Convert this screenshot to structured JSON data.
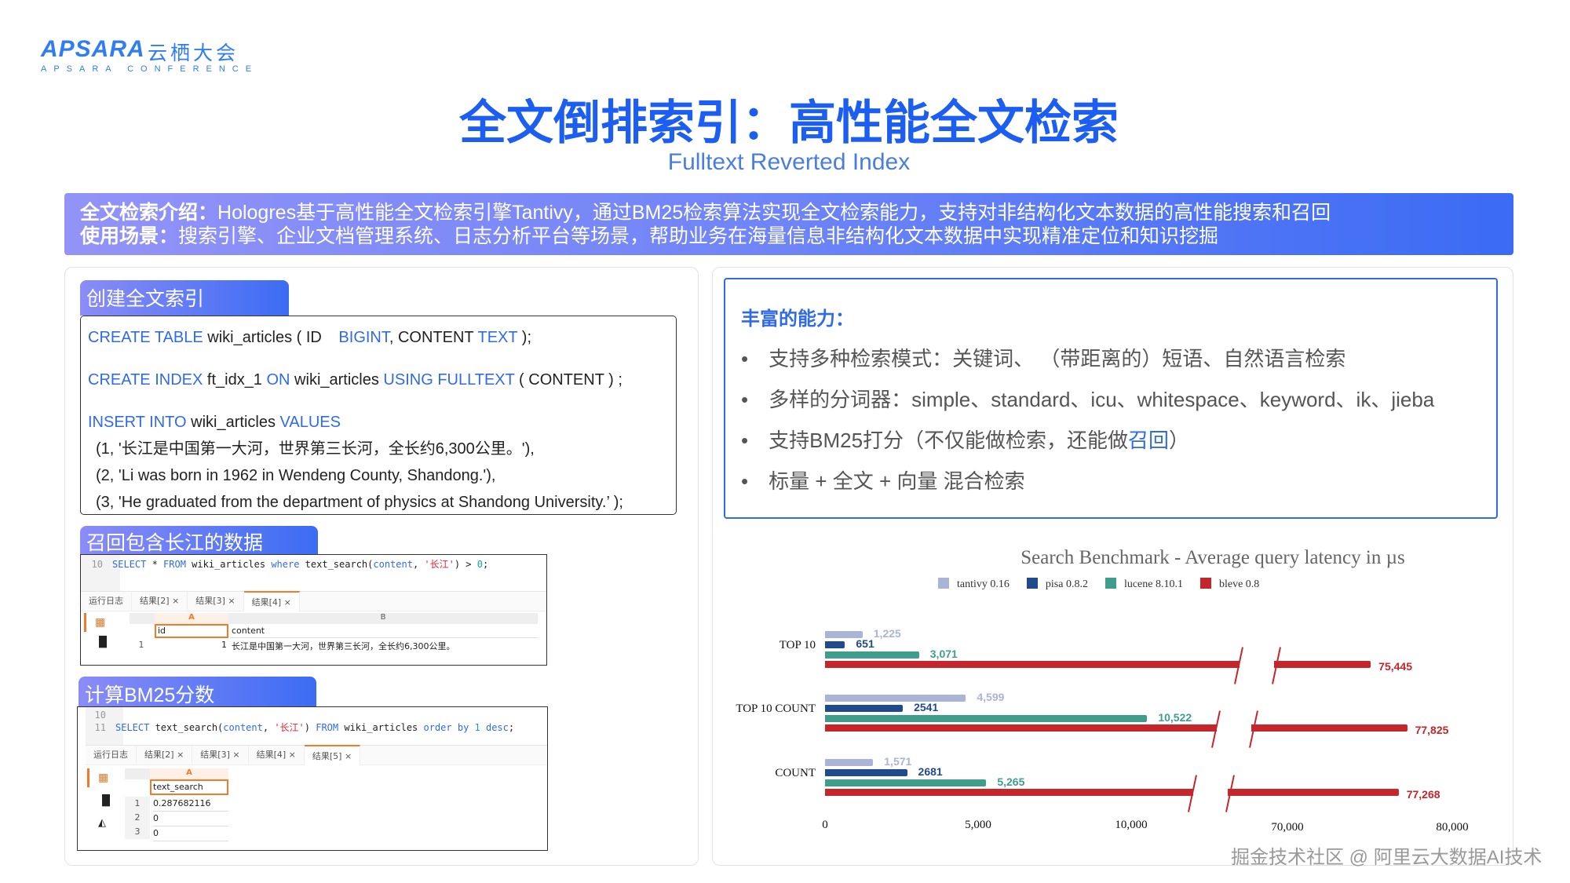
{
  "logo": {
    "main": "APSARA",
    "cn": "云栖大会",
    "sub": "APSARA CONFERENCE"
  },
  "title": "全文倒排索引：高性能全文检索",
  "subtitle": "Fulltext Reverted Index",
  "banner": {
    "line1_label": "全文检索介绍：",
    "line1": "Hologres基于高性能全文检索引擎Tantivy，通过BM25检索算法实现全文检索能力，支持对非结构化文本数据的高性能搜索和召回",
    "line2_label": "使用场景：",
    "line2": "搜索引擎、企业文档管理系统、日志分析平台等场景，帮助业务在海量信息非结构化文本数据中实现精准定位和知识挖掘"
  },
  "create": {
    "tab": "创建全文索引",
    "l1": {
      "k1": "CREATE TABLE",
      "t1": " wiki_articles ( ID ",
      "k2": "BIGINT",
      "t2": ", CONTENT ",
      "k3": "TEXT",
      "t3": " );"
    },
    "l2": {
      "k1": "CREATE INDEX",
      "t1": " ft_idx_1 ",
      "k2": "ON",
      "t2": " wiki_articles ",
      "k3": "USING FULLTEXT",
      "t3": " ( CONTENT ) ;"
    },
    "l3": {
      "k1": "INSERT INTO",
      "t1": " wiki_articles ",
      "k2": "VALUES"
    },
    "rows": [
      "(1, '长江是中国第一大河，世界第三长河，全长约6,300公里。'),",
      "(2, 'Li was born in 1962 in Wendeng County, Shandong.'),",
      "(3, 'He graduated from the department of physics at Shandong University.’  );"
    ]
  },
  "recall": {
    "tab": "召回包含长江的数据",
    "line_no": "10",
    "sql": {
      "a": "SELECT",
      "b": " * ",
      "c": "FROM",
      "d": " wiki_articles ",
      "e": "where",
      "f": " text_search(",
      "g": "content",
      "h": ", ",
      "i": "'长江'",
      "j": ") > ",
      "k": "0",
      ";": ";"
    },
    "tabs": [
      "运行日志",
      "结果[2] ×",
      "结果[3] ×",
      "结果[4] ×"
    ],
    "cols": [
      "A",
      "B"
    ],
    "headers": [
      "id",
      "content"
    ],
    "rows": [
      {
        "n": "1",
        "id": "1",
        "content": "长江是中国第一大河，世界第三长河，全长约6,300公里。"
      }
    ]
  },
  "bm25": {
    "tab": "计算BM25分数",
    "line_nos": [
      "10",
      "11"
    ],
    "sql": {
      "a": "SELECT",
      "b": " text_search(",
      "c": "content",
      "d": ", ",
      "e": "'长江'",
      "f": ") ",
      "g": "FROM",
      "h": " wiki_articles ",
      "i": "order by",
      "j": " 1 ",
      "k": "desc",
      ";": ";"
    },
    "tabs": [
      "运行日志",
      "结果[2] ×",
      "结果[3] ×",
      "结果[4] ×",
      "结果[5] ×"
    ],
    "col": "A",
    "header": "text_search",
    "rows": [
      {
        "n": "1",
        "v": "0.287682116"
      },
      {
        "n": "2",
        "v": "0"
      },
      {
        "n": "3",
        "v": "0"
      }
    ]
  },
  "capabilities": {
    "title": "丰富的能力：",
    "items": [
      "支持多种检索模式：关键词、 （带距离的）短语、自然语言检索",
      "多样的分词器：simple、standard、icu、whitespace、keyword、ik、jieba",
      "标量 + 全文 + 向量 混合检索"
    ],
    "bm25_a": "支持BM25打分（不仅能做检索，还能做",
    "bm25_b": "召回",
    "bm25_c": "）"
  },
  "chart_data": {
    "type": "bar",
    "orientation": "horizontal",
    "title": "Search Benchmark - Average query latency in µs",
    "categories": [
      "TOP 10",
      "TOP 10 COUNT",
      "COUNT"
    ],
    "series": [
      {
        "name": "tantivy 0.16",
        "color": "#a9b4d6",
        "values": [
          1225,
          4599,
          1571
        ],
        "labels": [
          "1,225",
          "4,599",
          "1,571"
        ]
      },
      {
        "name": "pisa 0.8.2",
        "color": "#1f4a8c",
        "values": [
          651,
          2541,
          2681
        ],
        "labels": [
          "651",
          "2541",
          "2681"
        ]
      },
      {
        "name": "lucene 8.10.1",
        "color": "#3f9d8c",
        "values": [
          3071,
          10522,
          5265
        ],
        "labels": [
          "3,071",
          "10,522",
          "5,265"
        ]
      },
      {
        "name": "bleve 0.8",
        "color": "#c4262b",
        "values": [
          75445,
          77825,
          77268
        ],
        "labels": [
          "75,445",
          "77,825",
          "77,268"
        ]
      }
    ],
    "xticks": [
      "0",
      "5,000",
      "10,000",
      "70,000",
      "80,000"
    ],
    "xtick_values": [
      0,
      5000,
      10000,
      70000,
      80000
    ],
    "axis_break": true,
    "legend": "top",
    "grid": false
  },
  "watermark": "掘金技术社区 @ 阿里云大数据AI技术"
}
